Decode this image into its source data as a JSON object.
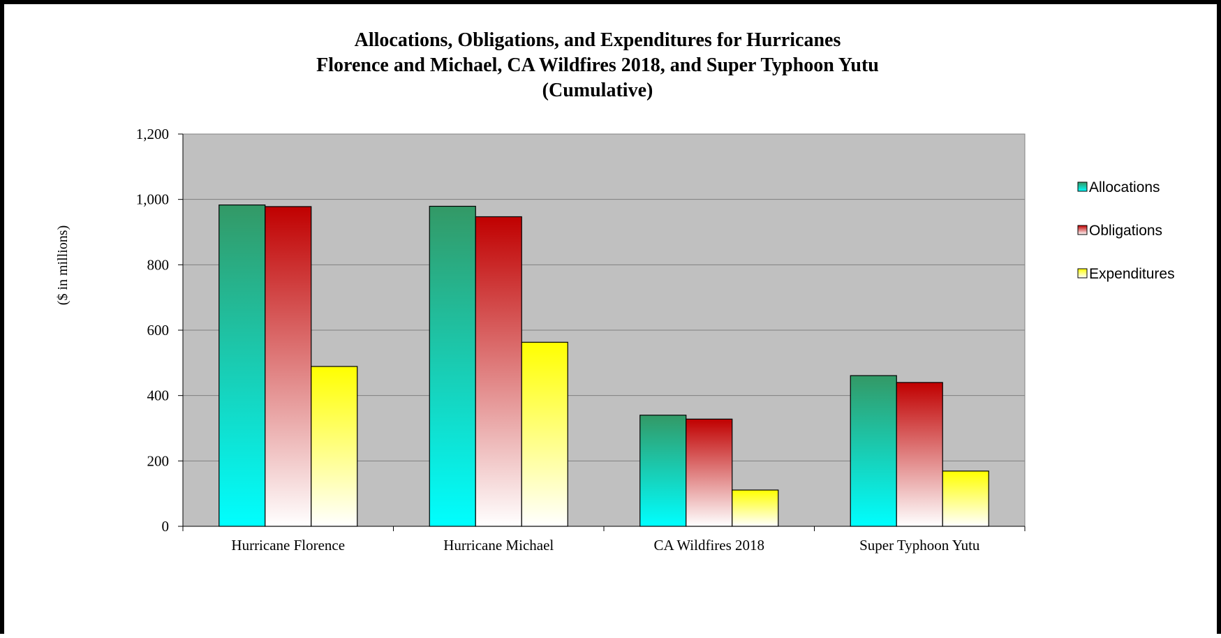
{
  "chart_data": {
    "type": "bar",
    "title_lines": [
      "Allocations, Obligations, and Expenditures for Hurricanes",
      "Florence and Michael, CA Wildfires 2018, and Super Typhoon Yutu",
      "(Cumulative)"
    ],
    "ylabel": "($ in millions)",
    "xlabel": "",
    "ylim": [
      0,
      1200
    ],
    "yticks": [
      0,
      200,
      400,
      600,
      800,
      1000,
      1200
    ],
    "ytick_labels": [
      "0",
      "200",
      "400",
      "600",
      "800",
      "1,000",
      "1,200"
    ],
    "grid": true,
    "legend_position": "right",
    "categories": [
      "Hurricane Florence",
      "Hurricane Michael",
      "CA Wildfires 2018",
      "Super Typhoon Yutu"
    ],
    "series": [
      {
        "name": "Allocations",
        "values": [
          983,
          979,
          340,
          461
        ],
        "color_top": "#339966",
        "color_bottom": "#00ffff"
      },
      {
        "name": "Obligations",
        "values": [
          978,
          947,
          328,
          440
        ],
        "color_top": "#c00000",
        "color_bottom": "#ffffff"
      },
      {
        "name": "Expenditures",
        "values": [
          489,
          563,
          111,
          169
        ],
        "color_top": "#ffff00",
        "color_bottom": "#ffffff"
      }
    ]
  }
}
